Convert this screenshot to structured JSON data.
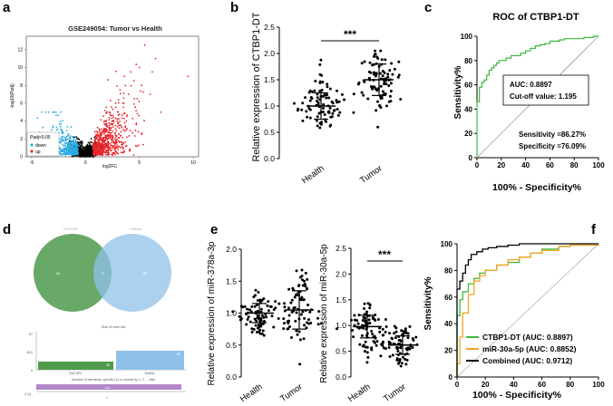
{
  "panel_labels": [
    "a",
    "b",
    "c",
    "d",
    "e",
    "f"
  ],
  "panel_a": {
    "title": "GSE249054: Tumor vs Health",
    "xlabel": "log2FC",
    "ylabel": "-log10(Padj)",
    "legend_title": "Padj<0.05",
    "legend_down": "down",
    "legend_up": "up",
    "colors": {
      "down": "#29abe2",
      "up": "#e8262b",
      "ns": "#000000"
    },
    "xticks": [
      "-5",
      "0",
      "5",
      "10"
    ],
    "yticks": [
      "0",
      "2",
      "4",
      "6",
      "8",
      "10",
      "12"
    ]
  },
  "panel_b": {
    "ylabel": "Relative expression of CTBP1-DT",
    "yticks": [
      "0.0",
      "0.5",
      "1.0",
      "1.5",
      "2.0",
      "2.5"
    ],
    "categories": [
      "Health",
      "Tumor"
    ],
    "significance": "***"
  },
  "panel_c": {
    "title": "ROC of CTBP1-DT",
    "xlabel": "100% - Specificity%",
    "ylabel": "Sensitivity%",
    "ticks": [
      "0",
      "20",
      "40",
      "60",
      "80",
      "100"
    ],
    "auc": "AUC: 0.8897",
    "cutoff": "Cut-off value: 1.195",
    "sensitivity": "Sensitivity =86.27%",
    "specificity": "Specificity =76.09%"
  },
  "panel_d": {
    "venn_left_label": "ENCORI",
    "venn_right_label": "DIANA",
    "left_only": "34",
    "overlap": "2",
    "right_only": "80",
    "bar_title": "Size of each list",
    "bar_label_left": "ENCORI",
    "bar_label_right": "DIANA",
    "bar_value_left": "36",
    "bar_value_right": "82",
    "bar_axis_top": "87",
    "bar_axis_mid": "43.5",
    "bar_axis_zero": "0",
    "shared_title": "Number of elements: specific (1) or shared by 2, 3, ... lists",
    "shared_axis": "2 (1)",
    "shared_bar_value": "116",
    "shared_tick": "1"
  },
  "panel_e": {
    "left": {
      "ylabel": "Relative expression of miR-378a-3p",
      "yticks": [
        "0.0",
        "0.5",
        "1.0",
        "1.5",
        "2.0"
      ],
      "categories": [
        "Health",
        "Tumor"
      ]
    },
    "right": {
      "ylabel": "Relative expression of miR-30a-5p",
      "yticks": [
        "0.0",
        "0.5",
        "1.0",
        "1.5",
        "2.0",
        "2.5"
      ],
      "categories": [
        "Health",
        "Tumor"
      ],
      "significance": "***"
    }
  },
  "panel_f": {
    "xlabel": "100% - Specificity%",
    "ylabel": "Sensitivity%",
    "ticks": [
      "0",
      "20",
      "40",
      "60",
      "80",
      "100"
    ],
    "legend": [
      {
        "label": "CTBP1-DT (AUC: 0.8897)",
        "color": "#3cb93c"
      },
      {
        "label": "miR-30a-5p (AUC: 0.8852)",
        "color": "#f5a623"
      },
      {
        "label": "Combined (AUC: 0.9712)",
        "color": "#000000"
      }
    ]
  },
  "chart_data": [
    {
      "type": "scatter",
      "title": "GSE249054: Tumor vs Health",
      "xlabel": "log2FC",
      "ylabel": "-log10(Padj)",
      "xlim": [
        -5,
        10
      ],
      "ylim": [
        0,
        13
      ],
      "series": [
        {
          "name": "down",
          "color": "#29abe2",
          "points": [
            [
              -1.5,
              1.2
            ],
            [
              -2,
              1.8
            ],
            [
              -2.5,
              2.2
            ],
            [
              -3,
              3
            ],
            [
              -3.5,
              3.5
            ],
            [
              -1.2,
              0.9
            ],
            [
              -2.2,
              2.8
            ],
            [
              -2.8,
              1.5
            ],
            [
              -3.2,
              2.4
            ],
            [
              -1.8,
              3.2
            ],
            [
              -1,
              1.5
            ],
            [
              -2.6,
              3.8
            ],
            [
              -4,
              2.6
            ],
            [
              -1.4,
              2.5
            ],
            [
              -3.8,
              3.1
            ],
            [
              -2.4,
              1.1
            ],
            [
              -1.7,
              0.8
            ],
            [
              -3,
              2.0
            ],
            [
              -2.1,
              4.2
            ],
            [
              -1.1,
              2.2
            ]
          ]
        },
        {
          "name": "up",
          "color": "#e8262b",
          "points": [
            [
              1.5,
              2
            ],
            [
              2,
              3
            ],
            [
              2.5,
              4
            ],
            [
              3,
              5
            ],
            [
              3.5,
              6
            ],
            [
              4,
              7
            ],
            [
              4.5,
              8.5
            ],
            [
              5,
              10
            ],
            [
              5.5,
              12.5
            ],
            [
              6.5,
              11
            ],
            [
              2.2,
              5
            ],
            [
              3.2,
              7.5
            ],
            [
              1.2,
              1.5
            ],
            [
              2.8,
              6
            ],
            [
              4.2,
              9.5
            ],
            [
              6,
              7
            ],
            [
              5.2,
              8
            ],
            [
              7,
              5
            ],
            [
              3.8,
              4
            ],
            [
              9.5,
              9
            ],
            [
              1.8,
              4
            ],
            [
              2.4,
              2
            ],
            [
              4.8,
              6.5
            ],
            [
              6.2,
              9.5
            ],
            [
              3.6,
              9
            ]
          ]
        },
        {
          "name": "not significant",
          "color": "#000000",
          "points": [
            [
              0,
              0.2
            ],
            [
              0.3,
              0.5
            ],
            [
              -0.3,
              0.4
            ],
            [
              0.6,
              0.8
            ],
            [
              -0.6,
              0.6
            ],
            [
              0.8,
              1.0
            ],
            [
              -0.8,
              0.9
            ],
            [
              0.1,
              0.3
            ],
            [
              -0.1,
              0.1
            ],
            [
              0.5,
              0.2
            ]
          ]
        }
      ]
    },
    {
      "type": "scatter",
      "title": "",
      "ylabel": "Relative expression of CTBP1-DT",
      "categories": [
        "Health",
        "Tumor"
      ],
      "ylim": [
        0,
        2.5
      ],
      "means": [
        1.0,
        1.5
      ],
      "sd": [
        0.25,
        0.3
      ],
      "significance": "***"
    },
    {
      "type": "line",
      "title": "ROC of CTBP1-DT",
      "xlabel": "100% - Specificity%",
      "ylabel": "Sensitivity%",
      "xlim": [
        0,
        100
      ],
      "ylim": [
        0,
        100
      ],
      "series": [
        {
          "name": "CTBP1-DT",
          "color": "#3cb93c",
          "x": [
            0,
            0,
            2,
            2,
            4,
            6,
            8,
            10,
            12,
            14,
            16,
            18,
            20,
            24,
            28,
            32,
            36,
            40,
            44,
            48,
            52,
            56,
            60,
            64,
            68,
            72,
            80,
            88,
            96,
            100
          ],
          "y": [
            0,
            46,
            50,
            58,
            62,
            64,
            68,
            72,
            74,
            76,
            78,
            80,
            80,
            82,
            84,
            84,
            86,
            88,
            90,
            92,
            93,
            94,
            96,
            96,
            97,
            98,
            98,
            99,
            100,
            100
          ]
        },
        {
          "name": "reference",
          "color": "#999999",
          "x": [
            0,
            100
          ],
          "y": [
            0,
            100
          ]
        }
      ],
      "annotations": [
        "AUC: 0.8897",
        "Cut-off value: 1.195",
        "Sensitivity =86.27%",
        "Specificity =76.09%"
      ]
    },
    {
      "type": "scatter",
      "ylabel": "Relative expression of miR-378a-3p",
      "categories": [
        "Health",
        "Tumor"
      ],
      "ylim": [
        0,
        2.0
      ],
      "means": [
        1.0,
        1.05
      ],
      "sd": [
        0.15,
        0.3
      ]
    },
    {
      "type": "scatter",
      "ylabel": "Relative expression of miR-30a-5p",
      "categories": [
        "Health",
        "Tumor"
      ],
      "ylim": [
        0,
        2.5
      ],
      "means": [
        0.98,
        0.62
      ],
      "sd": [
        0.22,
        0.18
      ],
      "significance": "***"
    },
    {
      "type": "line",
      "xlabel": "100% - Specificity%",
      "ylabel": "Sensitivity%",
      "xlim": [
        0,
        100
      ],
      "ylim": [
        0,
        100
      ],
      "series": [
        {
          "name": "CTBP1-DT (AUC: 0.8897)",
          "color": "#3cb93c",
          "x": [
            0,
            0,
            2,
            4,
            8,
            12,
            16,
            20,
            28,
            36,
            44,
            52,
            60,
            72,
            80,
            100
          ],
          "y": [
            0,
            46,
            58,
            64,
            70,
            74,
            78,
            80,
            84,
            86,
            90,
            93,
            96,
            98,
            99,
            100
          ]
        },
        {
          "name": "miR-30a-5p (AUC: 0.8852)",
          "color": "#f5a623",
          "x": [
            0,
            0,
            2,
            4,
            8,
            12,
            16,
            20,
            28,
            36,
            44,
            52,
            60,
            72,
            80,
            100
          ],
          "y": [
            0,
            10,
            30,
            48,
            62,
            72,
            76,
            80,
            84,
            88,
            90,
            93,
            95,
            98,
            99,
            100
          ]
        },
        {
          "name": "Combined (AUC: 0.9712)",
          "color": "#000000",
          "x": [
            0,
            0,
            2,
            4,
            6,
            8,
            10,
            14,
            18,
            22,
            28,
            36,
            44,
            60,
            80,
            100
          ],
          "y": [
            0,
            66,
            72,
            78,
            84,
            88,
            92,
            94,
            96,
            97,
            98,
            99,
            100,
            100,
            100,
            100
          ]
        }
      ]
    }
  ]
}
